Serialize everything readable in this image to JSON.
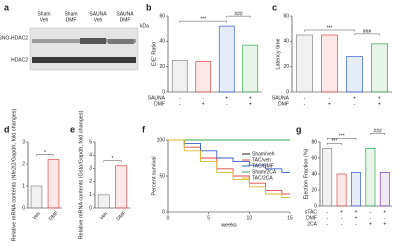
{
  "panel_labels": [
    "a",
    "b",
    "c",
    "d",
    "e",
    "f",
    "g"
  ],
  "blot": {
    "lanes": [
      [
        "Sham",
        "Veh"
      ],
      [
        "Sham",
        "DMF"
      ],
      [
        "SAUNA",
        "Veh"
      ],
      [
        "SAUNA",
        "DMF"
      ]
    ],
    "bands": [
      "SNO-HDAC2",
      "HDAC2"
    ],
    "unit": "kDa"
  },
  "chart_data": [
    {
      "type": "bar",
      "ylabel": "E/E' Ratio",
      "values": [
        25,
        24,
        52,
        37
      ],
      "colors": [
        "#888888",
        "#e04848",
        "#3a5fd0",
        "#2fa84f"
      ],
      "factors": [
        {
          "name": "SAUNA",
          "levels": [
            "-",
            "-",
            "+",
            "+"
          ]
        },
        {
          "name": "DMF",
          "levels": [
            "-",
            "+",
            "-",
            "+"
          ]
        }
      ],
      "ylim": [
        0,
        60
      ],
      "yticks": [
        0,
        20,
        40,
        60
      ],
      "annotations": [
        "***",
        "###"
      ]
    },
    {
      "type": "bar",
      "ylabel": "Latency time",
      "values": [
        45,
        45,
        28,
        38
      ],
      "colors": [
        "#888888",
        "#e04848",
        "#3a5fd0",
        "#2fa84f"
      ],
      "factors": [
        {
          "name": "SAUNA",
          "levels": [
            "-",
            "-",
            "+",
            "+"
          ]
        },
        {
          "name": "DMF",
          "levels": [
            "-",
            "+",
            "-",
            "+"
          ]
        }
      ],
      "ylim": [
        0,
        60
      ],
      "yticks": [
        0,
        20,
        40,
        60
      ],
      "annotations": [
        "***",
        "###"
      ]
    },
    {
      "type": "bar",
      "ylabel": "Relative mRNA contents (Nfe2l2/Gapdh, fold changes)",
      "categories": [
        "Veh",
        "DMF"
      ],
      "values": [
        1,
        2.2
      ],
      "colors": [
        "#888888",
        "#e04848"
      ],
      "ylim": [
        0,
        3
      ],
      "yticks": [
        0,
        1,
        2,
        3
      ],
      "annotations": [
        "*"
      ]
    },
    {
      "type": "bar",
      "ylabel": "Relative mRNA contents (Gstα/Gapdh, fold changes)",
      "categories": [
        "Veh",
        "DMF"
      ],
      "values": [
        1,
        3.2
      ],
      "colors": [
        "#888888",
        "#e04848"
      ],
      "ylim": [
        0,
        5
      ],
      "yticks": [
        0,
        1,
        2,
        3,
        4,
        5
      ],
      "annotations": [
        "*"
      ]
    },
    {
      "type": "line",
      "ylabel": "Percent survival",
      "xlabel": "weeks",
      "x": [
        0,
        2,
        4,
        6,
        8,
        10,
        12,
        14,
        15
      ],
      "series": [
        {
          "name": "Sham/veh",
          "color": "#222222",
          "values": [
            100,
            100,
            100,
            100,
            100,
            100,
            100,
            100,
            100
          ]
        },
        {
          "name": "TAC/veh",
          "color": "#e04848",
          "values": [
            100,
            90,
            75,
            60,
            50,
            40,
            30,
            25,
            25
          ]
        },
        {
          "name": "TAC/DMF",
          "color": "#3a5fd0",
          "values": [
            100,
            95,
            85,
            75,
            70,
            65,
            60,
            55,
            55
          ]
        },
        {
          "name": "Sham/2CA",
          "color": "#2fa84f",
          "values": [
            100,
            100,
            100,
            100,
            100,
            100,
            100,
            100,
            100
          ]
        },
        {
          "name": "TAC/2CA",
          "color": "#d8b830",
          "values": [
            100,
            85,
            70,
            55,
            45,
            35,
            25,
            20,
            20
          ]
        }
      ],
      "xlim": [
        0,
        15
      ],
      "xticks": [
        0,
        5,
        10,
        15
      ],
      "ylim": [
        0,
        100
      ],
      "yticks": [
        0,
        50,
        100
      ]
    },
    {
      "type": "bar",
      "ylabel": "Ejection Fraction (%)",
      "values": [
        72,
        40,
        42,
        72,
        42
      ],
      "colors": [
        "#888888",
        "#e04848",
        "#3a5fd0",
        "#2fa84f",
        "#7a3fb0"
      ],
      "factors": [
        {
          "name": "sTAC",
          "levels": [
            "-",
            "+",
            "+",
            "-",
            "+"
          ]
        },
        {
          "name": "DMF",
          "levels": [
            "-",
            "-",
            "+",
            "-",
            "-"
          ]
        },
        {
          "name": "2CA",
          "levels": [
            "-",
            "-",
            "-",
            "+",
            "+"
          ]
        }
      ],
      "ylim": [
        0,
        80
      ],
      "yticks": [
        0,
        20,
        40,
        60,
        80
      ],
      "annotations": [
        "***",
        "***",
        "###"
      ]
    }
  ]
}
